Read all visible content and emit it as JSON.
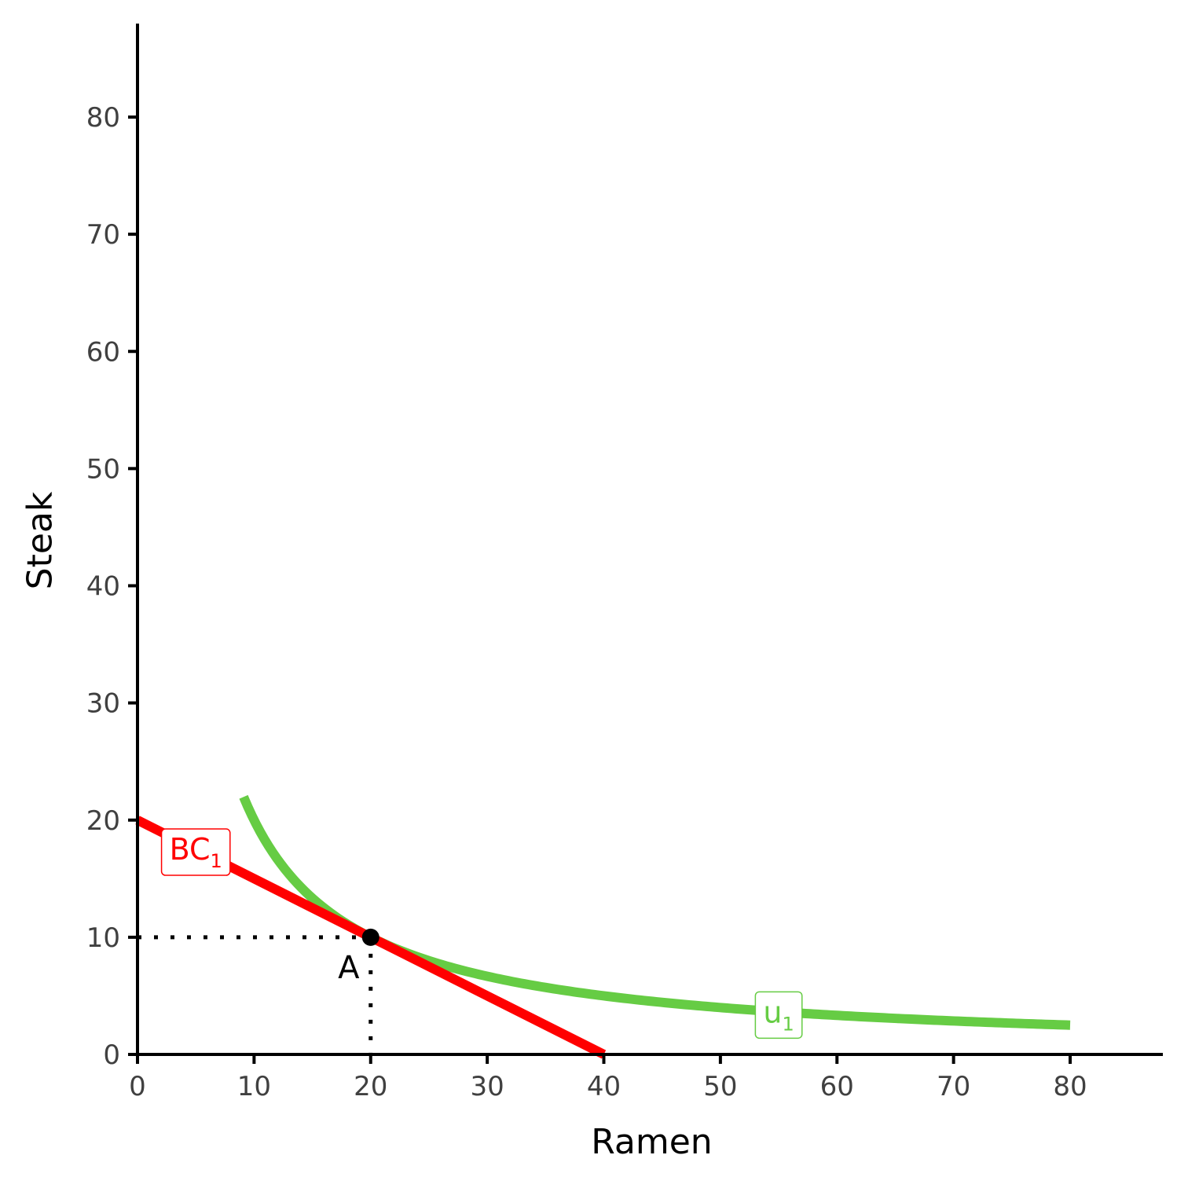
{
  "chart_data": {
    "type": "line",
    "xlabel": "Ramen",
    "ylabel": "Steak",
    "xlim": [
      0,
      88
    ],
    "ylim": [
      0,
      88
    ],
    "x_ticks": [
      0,
      10,
      20,
      30,
      40,
      50,
      60,
      70,
      80
    ],
    "y_ticks": [
      0,
      10,
      20,
      30,
      40,
      50,
      60,
      70,
      80
    ],
    "x_tick_labels": [
      "0",
      "10",
      "20",
      "30",
      "40",
      "50",
      "60",
      "70",
      "80"
    ],
    "y_tick_labels": [
      "0",
      "10",
      "20",
      "30",
      "40",
      "50",
      "60",
      "70",
      "80"
    ],
    "grid": false,
    "series": [
      {
        "key": "budget",
        "name": "BC",
        "name_subscript": "1",
        "color": "#ff0000",
        "x": [
          0,
          40
        ],
        "y": [
          20,
          0
        ]
      },
      {
        "key": "indifference",
        "name": "u",
        "name_subscript": "1",
        "color": "#66cc44",
        "function": "x*y = 200",
        "x_start": 9.1,
        "x_end": 80
      }
    ],
    "annotations": [
      {
        "label": "A",
        "x": 20,
        "y": 10,
        "guides": "dotted lines to both axes"
      }
    ],
    "label_positions": {
      "budget_label_at": [
        5,
        17.5
      ],
      "indifference_label_at": [
        55,
        3.6
      ]
    }
  }
}
